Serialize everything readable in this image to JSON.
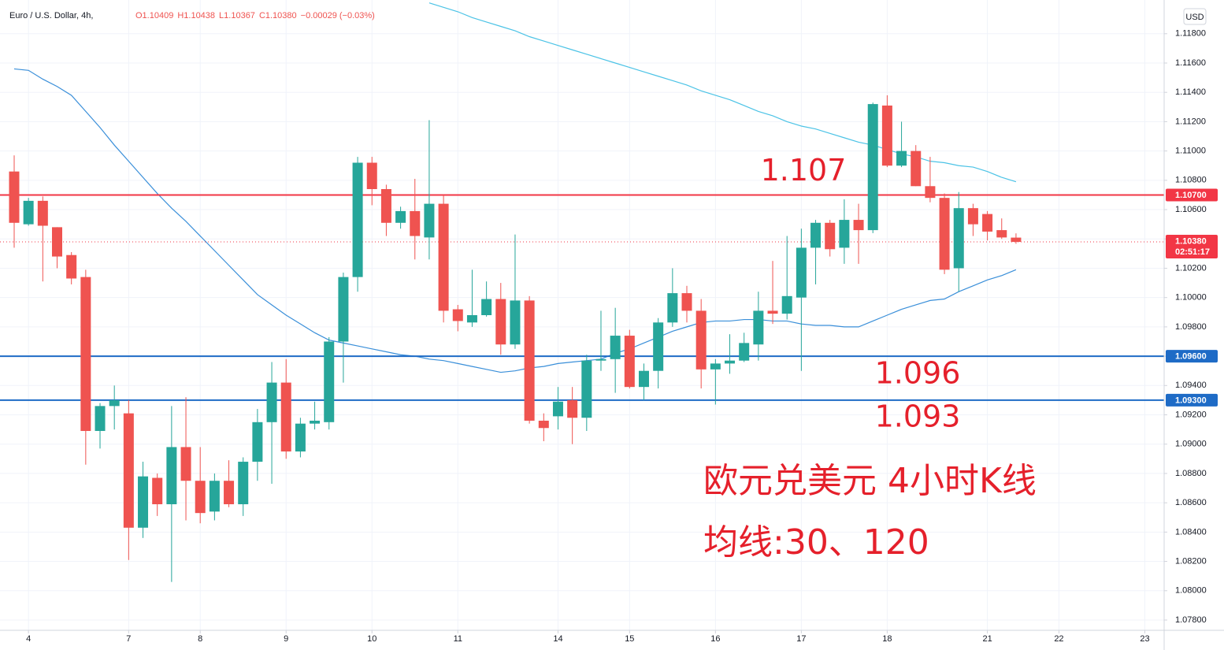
{
  "chart_data": {
    "type": "candlestick",
    "title": "Euro / U.S. Dollar, 4h,",
    "ohlc_header": [
      "O1.10409",
      "H1.10438",
      "L1.10367",
      "C1.10380",
      "−0.00029 (−0.03%)"
    ],
    "currency": "USD",
    "up_color": "#26a69a",
    "down_color": "#ef5350",
    "open": [
      1.1086,
      1.105,
      1.1066,
      1.1048,
      1.1029,
      1.1014,
      1.0909,
      1.0926,
      1.0921,
      1.0843,
      1.0877,
      1.0859,
      1.0898,
      1.0875,
      1.0854,
      1.0875,
      1.0859,
      1.0888,
      1.0915,
      1.0942,
      1.0895,
      1.0914,
      1.0915,
      1.097,
      1.1014,
      1.1092,
      1.1074,
      1.1051,
      1.1059,
      1.1041,
      1.1064,
      1.0992,
      1.0983,
      1.0988,
      1.0999,
      1.0968,
      1.0998,
      1.0916,
      1.0919,
      1.093,
      1.0918,
      1.0957,
      1.0958,
      1.0974,
      1.0939,
      1.095,
      1.0983,
      1.1003,
      1.0991,
      1.0951,
      1.0955,
      1.0957,
      1.0968,
      1.0991,
      1.0989,
      1.1,
      1.1034,
      1.1051,
      1.1034,
      1.1053,
      1.1046,
      1.1131,
      1.109,
      1.11,
      1.1076,
      1.1068,
      1.102,
      1.1061,
      1.1057,
      1.1046,
      1.10409
    ],
    "high": [
      1.1097,
      1.1068,
      1.1069,
      1.1048,
      1.1031,
      1.1019,
      1.0928,
      1.094,
      1.093,
      1.0888,
      1.088,
      1.0926,
      1.0932,
      1.0898,
      1.088,
      1.0889,
      1.0891,
      1.0924,
      1.0956,
      1.0958,
      1.0918,
      1.0929,
      1.0973,
      1.1017,
      1.1096,
      1.1096,
      1.1077,
      1.1062,
      1.1081,
      1.1121,
      1.107,
      1.0995,
      1.1019,
      1.1011,
      1.101,
      1.1043,
      1.1001,
      1.0921,
      1.0939,
      1.0939,
      1.0961,
      1.0991,
      1.0993,
      1.0978,
      1.0955,
      1.0986,
      1.102,
      1.1008,
      1.0999,
      1.0958,
      1.0975,
      1.0976,
      1.1004,
      1.1025,
      1.1042,
      1.1047,
      1.1053,
      1.1053,
      1.1067,
      1.1064,
      1.1133,
      1.1138,
      1.112,
      1.1104,
      1.1096,
      1.1071,
      1.1072,
      1.1064,
      1.1059,
      1.1054,
      1.10438
    ],
    "low": [
      1.1034,
      1.1049,
      1.1011,
      1.102,
      1.1009,
      1.0886,
      1.0897,
      1.091,
      1.0821,
      1.0836,
      1.0851,
      1.0806,
      1.0848,
      1.0846,
      1.0848,
      1.0857,
      1.0851,
      1.0875,
      1.0873,
      1.089,
      1.0891,
      1.091,
      1.091,
      1.0942,
      1.1004,
      1.1063,
      1.1042,
      1.1047,
      1.1026,
      1.1026,
      1.0983,
      1.0977,
      1.098,
      1.0987,
      1.0961,
      1.0965,
      1.0914,
      1.0902,
      1.091,
      1.09,
      1.0909,
      1.095,
      1.0935,
      1.0938,
      1.093,
      1.0938,
      1.098,
      1.0983,
      1.0938,
      1.0927,
      1.0948,
      1.0956,
      1.0957,
      1.0982,
      1.0985,
      1.095,
      1.1009,
      1.1028,
      1.1023,
      1.1023,
      1.1044,
      1.1089,
      1.1089,
      1.1076,
      1.1065,
      1.1016,
      1.1004,
      1.1042,
      1.1039,
      1.104,
      1.10367
    ],
    "close": [
      1.1051,
      1.1066,
      1.1049,
      1.1028,
      1.1013,
      1.0909,
      1.0926,
      1.093,
      1.0843,
      1.0878,
      1.0859,
      1.0898,
      1.0875,
      1.0853,
      1.0875,
      1.0859,
      1.0888,
      1.0915,
      1.0942,
      1.0895,
      1.0914,
      1.0916,
      1.097,
      1.1014,
      1.1092,
      1.1074,
      1.1051,
      1.1059,
      1.1042,
      1.1064,
      1.0991,
      1.0984,
      1.0988,
      1.0999,
      1.0968,
      1.0998,
      1.0916,
      1.0911,
      1.0929,
      1.0918,
      1.0957,
      1.0958,
      1.0974,
      1.0939,
      1.095,
      1.0983,
      1.1003,
      1.0991,
      1.0951,
      1.0955,
      1.0957,
      1.0969,
      1.0991,
      1.0989,
      1.1001,
      1.1034,
      1.1051,
      1.1033,
      1.1053,
      1.1046,
      1.1132,
      1.109,
      1.11,
      1.1076,
      1.1068,
      1.1019,
      1.1061,
      1.105,
      1.1045,
      1.1041,
      1.1038
    ],
    "series": [
      {
        "color": "#3a8fd9",
        "values": [
          1.1156,
          1.1155,
          1.1149,
          1.1144,
          1.1138,
          1.1127,
          1.1116,
          1.1104,
          1.1093,
          1.1082,
          1.1071,
          1.1061,
          1.1052,
          1.1042,
          1.1032,
          1.1022,
          1.1012,
          1.1002,
          1.0995,
          1.0988,
          1.0982,
          1.0976,
          1.0971,
          1.0969,
          1.0967,
          1.0965,
          1.0963,
          1.0961,
          1.096,
          1.0958,
          1.0957,
          1.0955,
          1.0953,
          1.0951,
          1.0949,
          1.095,
          1.0952,
          1.0953,
          1.0955,
          1.0956,
          1.0957,
          1.0958,
          1.0962,
          1.0965,
          1.0969,
          1.0973,
          1.0977,
          1.098,
          1.0983,
          1.0984,
          1.0984,
          1.0985,
          1.0985,
          1.0984,
          1.0984,
          1.0982,
          1.0981,
          1.0981,
          1.098,
          1.098,
          1.0984,
          1.0988,
          1.0992,
          1.0995,
          1.0998,
          1.0999,
          1.1004,
          1.1008,
          1.1012,
          1.1015,
          1.1019
        ]
      },
      {
        "color": "#4cc3e6",
        "values": [
          null,
          null,
          null,
          null,
          null,
          null,
          null,
          null,
          null,
          null,
          null,
          null,
          null,
          null,
          null,
          null,
          null,
          null,
          null,
          null,
          null,
          null,
          null,
          null,
          null,
          null,
          null,
          null,
          null,
          1.1201,
          1.1198,
          1.1195,
          1.1191,
          1.1188,
          1.1185,
          1.1182,
          1.1178,
          1.1175,
          1.1172,
          1.1169,
          1.1166,
          1.1163,
          1.116,
          1.1157,
          1.1154,
          1.1151,
          1.1148,
          1.1145,
          1.1141,
          1.1138,
          1.1135,
          1.1131,
          1.1127,
          1.1124,
          1.112,
          1.1117,
          1.1115,
          1.1112,
          1.1109,
          1.1106,
          1.1104,
          1.1101,
          1.1098,
          1.1096,
          1.1093,
          1.1092,
          1.109,
          1.1089,
          1.1086,
          1.1082,
          1.1079
        ]
      }
    ],
    "xlim": [
      -0.99,
      80.35
    ],
    "xticks": [
      {
        "value": 1,
        "label": "4"
      },
      {
        "value": 8,
        "label": "7"
      },
      {
        "value": 13,
        "label": "8"
      },
      {
        "value": 19,
        "label": "9"
      },
      {
        "value": 25,
        "label": "10"
      },
      {
        "value": 31,
        "label": "11"
      },
      {
        "value": 38,
        "label": "14"
      },
      {
        "value": 43,
        "label": "15"
      },
      {
        "value": 49,
        "label": "16"
      },
      {
        "value": 55,
        "label": "17"
      },
      {
        "value": 61,
        "label": "18"
      },
      {
        "value": 68,
        "label": "21"
      },
      {
        "value": 73,
        "label": "22"
      },
      {
        "value": 79,
        "label": "23"
      }
    ],
    "ylim": [
      1.0773,
      1.1203
    ],
    "yticks": [
      {
        "value": 1.118,
        "label": "1.11800"
      },
      {
        "value": 1.116,
        "label": "1.11600"
      },
      {
        "value": 1.114,
        "label": "1.11400"
      },
      {
        "value": 1.112,
        "label": "1.11200"
      },
      {
        "value": 1.11,
        "label": "1.11000"
      },
      {
        "value": 1.108,
        "label": "1.10800"
      },
      {
        "value": 1.106,
        "label": "1.10600"
      },
      {
        "value": 1.104,
        "label": "1.10400"
      },
      {
        "value": 1.102,
        "label": "1.10200"
      },
      {
        "value": 1.1,
        "label": "1.10000"
      },
      {
        "value": 1.098,
        "label": "1.09800"
      },
      {
        "value": 1.096,
        "label": "1.09600"
      },
      {
        "value": 1.094,
        "label": "1.09400"
      },
      {
        "value": 1.092,
        "label": "1.09200"
      },
      {
        "value": 1.09,
        "label": "1.09000"
      },
      {
        "value": 1.088,
        "label": "1.08800"
      },
      {
        "value": 1.086,
        "label": "1.08600"
      },
      {
        "value": 1.084,
        "label": "1.08400"
      },
      {
        "value": 1.082,
        "label": "1.08200"
      },
      {
        "value": 1.08,
        "label": "1.08000"
      },
      {
        "value": 1.078,
        "label": "1.07800"
      }
    ],
    "grid": true,
    "hlines": [
      {
        "price": {
          "value": 1.107,
          "label": "1.10700"
        },
        "color": "#f23645"
      },
      {
        "price": {
          "value": 1.096,
          "label": "1.09600"
        },
        "color": "#1e6bc6"
      },
      {
        "price": {
          "value": 1.093,
          "label": "1.09300"
        },
        "color": "#1e6bc6"
      }
    ],
    "last": {
      "price": {
        "value": 1.1038,
        "label": "1.10380"
      },
      "countdown": "02:51:17",
      "color": "#f23645"
    },
    "annotations": [
      "欧元兑美元 4小时K线",
      "均线:30、120"
    ]
  }
}
